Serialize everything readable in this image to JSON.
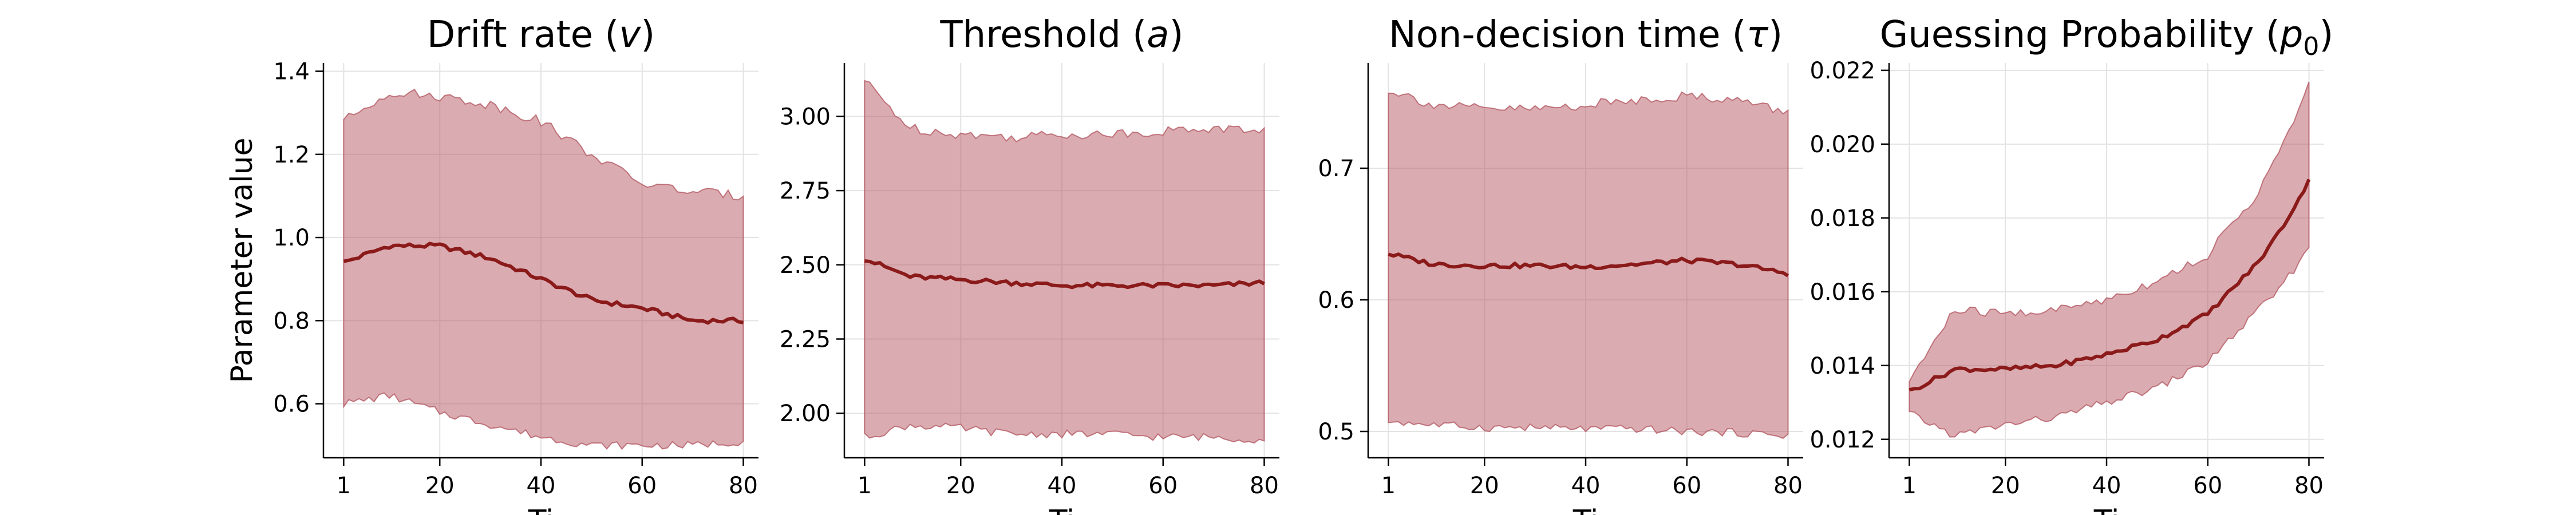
{
  "chart_data": [
    {
      "type": "area",
      "title": "Drift rate (",
      "title_symbol": "v",
      "title_suffix": ")",
      "ylabel": "Parameter value",
      "xlabel": "Ti",
      "ylim": [
        0.47,
        1.42
      ],
      "yticks": [
        0.6,
        0.8,
        1.0,
        1.2,
        1.4
      ],
      "ytick_labels": [
        "0.6",
        "0.8",
        "1.0",
        "1.2",
        "1.4"
      ],
      "x": [
        1,
        10,
        20,
        30,
        40,
        50,
        60,
        70,
        80
      ],
      "mean": [
        0.94,
        0.98,
        0.98,
        0.95,
        0.9,
        0.85,
        0.83,
        0.8,
        0.8
      ],
      "lower": [
        0.6,
        0.62,
        0.58,
        0.55,
        0.52,
        0.5,
        0.5,
        0.5,
        0.51
      ],
      "upper": [
        1.28,
        1.35,
        1.34,
        1.32,
        1.28,
        1.2,
        1.13,
        1.11,
        1.1
      ]
    },
    {
      "type": "area",
      "title": "Threshold (",
      "title_symbol": "a",
      "title_suffix": ")",
      "ylabel": "",
      "xlabel": "Ti",
      "ylim": [
        1.85,
        3.18
      ],
      "yticks": [
        2.0,
        2.25,
        2.5,
        2.75,
        3.0
      ],
      "ytick_labels": [
        "2.00",
        "2.25",
        "2.50",
        "2.75",
        "3.00"
      ],
      "x": [
        1,
        10,
        20,
        30,
        40,
        50,
        60,
        70,
        80
      ],
      "mean": [
        2.52,
        2.46,
        2.45,
        2.44,
        2.43,
        2.43,
        2.43,
        2.43,
        2.44
      ],
      "lower": [
        1.92,
        1.96,
        1.95,
        1.93,
        1.93,
        1.93,
        1.92,
        1.92,
        1.91
      ],
      "upper": [
        3.12,
        2.96,
        2.94,
        2.93,
        2.94,
        2.94,
        2.95,
        2.96,
        2.95
      ]
    },
    {
      "type": "area",
      "title": "Non-decision time (",
      "title_symbol": "τ",
      "title_suffix": ")",
      "ylabel": "",
      "xlabel": "Ti",
      "ylim": [
        0.48,
        0.78
      ],
      "yticks": [
        0.5,
        0.6,
        0.7
      ],
      "ytick_labels": [
        "0.5",
        "0.6",
        "0.7"
      ],
      "x": [
        1,
        10,
        20,
        30,
        40,
        50,
        60,
        70,
        80
      ],
      "mean": [
        0.635,
        0.627,
        0.626,
        0.626,
        0.625,
        0.627,
        0.63,
        0.627,
        0.62
      ],
      "lower": [
        0.508,
        0.505,
        0.503,
        0.503,
        0.502,
        0.502,
        0.5,
        0.499,
        0.497
      ],
      "upper": [
        0.76,
        0.748,
        0.745,
        0.745,
        0.748,
        0.752,
        0.755,
        0.752,
        0.742
      ]
    },
    {
      "type": "area",
      "title": "Guessing Probability (",
      "title_symbol": "p",
      "title_subscript": "0",
      "title_suffix": ")",
      "ylabel": "",
      "xlabel": "Ti",
      "ylim": [
        0.0115,
        0.0222
      ],
      "yticks": [
        0.012,
        0.014,
        0.016,
        0.018,
        0.02,
        0.022
      ],
      "ytick_labels": [
        "0.012",
        "0.014",
        "0.016",
        "0.018",
        "0.020",
        "0.022"
      ],
      "x": [
        1,
        10,
        20,
        30,
        40,
        50,
        60,
        70,
        75,
        80
      ],
      "mean": [
        0.0133,
        0.0139,
        0.0139,
        0.014,
        0.0143,
        0.0147,
        0.0154,
        0.0168,
        0.0178,
        0.019
      ],
      "lower": [
        0.0127,
        0.0121,
        0.0124,
        0.0126,
        0.013,
        0.0134,
        0.0141,
        0.0155,
        0.0162,
        0.0172
      ],
      "upper": [
        0.0136,
        0.0155,
        0.0154,
        0.0155,
        0.0158,
        0.0163,
        0.017,
        0.0187,
        0.02,
        0.0216
      ]
    }
  ],
  "shared": {
    "xticks": [
      1,
      20,
      40,
      60,
      80
    ],
    "xtick_labels": [
      "1",
      "20",
      "40",
      "60",
      "80"
    ],
    "xlim": [
      -3,
      83
    ],
    "band_color": "#b55a64",
    "band_opacity": 0.5,
    "line_color": "#8b1a1a"
  }
}
